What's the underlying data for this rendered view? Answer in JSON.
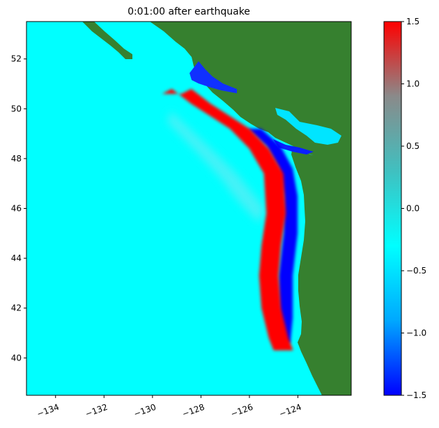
{
  "title": "0:01:00 after earthquake",
  "map": {
    "lon_range": [
      -135.2,
      -121.8
    ],
    "lat_range": [
      38.5,
      53.5
    ],
    "lon_ticks": [
      -134,
      -132,
      -130,
      -128,
      -126,
      -124
    ],
    "lon_tick_labels": [
      "−134",
      "−132",
      "−130",
      "−128",
      "−126",
      "−124"
    ],
    "lat_ticks": [
      40,
      42,
      44,
      46,
      48,
      50,
      52
    ],
    "lat_tick_labels": [
      "40",
      "42",
      "44",
      "46",
      "48",
      "50",
      "52"
    ],
    "land_color": "#36802f",
    "ocean_color": "#00ffff",
    "positive_color": "#ff0000",
    "negative_color": "#0000ff",
    "red_band": [
      [
        -129.2,
        50.6
      ],
      [
        -128.8,
        50.8
      ],
      [
        -128,
        50.2
      ],
      [
        -127.2,
        49.7
      ],
      [
        -126.4,
        49.2
      ],
      [
        -125.6,
        48.4
      ],
      [
        -125.0,
        47.4
      ],
      [
        -124.9,
        45.8
      ],
      [
        -125.1,
        44.5
      ],
      [
        -125.2,
        43.3
      ],
      [
        -125.1,
        42.0
      ],
      [
        -124.8,
        40.8
      ],
      [
        -124.6,
        40.3
      ]
    ],
    "blue_band": [
      [
        -125.8,
        49.2
      ],
      [
        -125.0,
        48.5
      ],
      [
        -124.5,
        47.6
      ],
      [
        -124.3,
        46.5
      ],
      [
        -124.3,
        45.0
      ],
      [
        -124.5,
        43.3
      ],
      [
        -124.5,
        41.6
      ],
      [
        -124.6,
        40.6
      ]
    ]
  },
  "colorbar": {
    "min": -1.5,
    "max": 1.5,
    "ticks": [
      1.5,
      1.0,
      0.5,
      0.0,
      -0.5,
      -1.0,
      -1.5
    ],
    "tick_labels": [
      "1.5",
      "1.0",
      "0.5",
      "0.0",
      "−0.5",
      "−1.0",
      "−1.5"
    ],
    "stops": [
      "#0000ff",
      "#00a8ff",
      "#00ffff",
      "#40c0c0",
      "#8a8a8a",
      "#ff0000"
    ]
  }
}
